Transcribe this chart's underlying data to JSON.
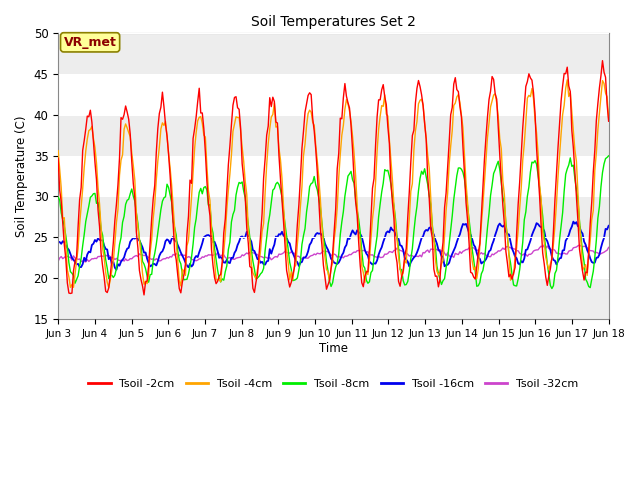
{
  "title": "Soil Temperatures Set 2",
  "xlabel": "Time",
  "ylabel": "Soil Temperature (C)",
  "ylim": [
    15,
    50
  ],
  "yticks": [
    15,
    20,
    25,
    30,
    35,
    40,
    45,
    50
  ],
  "colors": {
    "Tsoil -2cm": "#FF0000",
    "Tsoil -4cm": "#FFA500",
    "Tsoil -8cm": "#00EE00",
    "Tsoil -16cm": "#0000EE",
    "Tsoil -32cm": "#CC44CC"
  },
  "annotation_text": "VR_met",
  "annotation_color": "#8B0000",
  "annotation_bg": "#FFFF99",
  "annotation_edge": "#8B8000",
  "fig_bg": "#FFFFFF",
  "plot_bg": "#FFFFFF",
  "band_color": "#DCDCDC",
  "xtick_labels": [
    "Jun 3",
    "Jun 4",
    "Jun 5",
    "Jun 6",
    "Jun 7",
    "Jun 8",
    "Jun 9",
    "Jun 10",
    "Jun 11",
    "Jun 12",
    "Jun 13",
    "Jun 14",
    "Jun 15",
    "Jun 16",
    "Jun 17",
    "Jun 18"
  ]
}
